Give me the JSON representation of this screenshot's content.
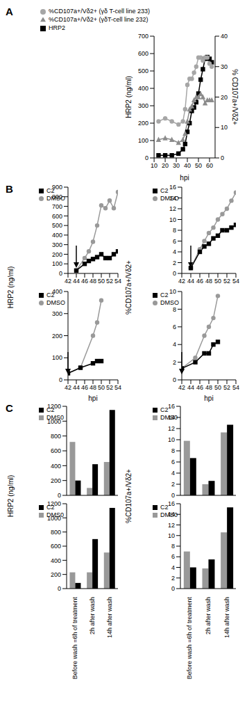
{
  "chart_data": [
    {
      "type": "line",
      "title": "A",
      "xlabel": "hpi",
      "ylabel": "HRP2 (ng/ml)",
      "y2label": "% CD107a+/Vδ2+",
      "x": [
        14,
        20,
        26,
        32,
        36,
        38,
        40,
        42,
        44,
        46,
        48,
        50,
        52,
        54,
        56,
        58,
        60,
        62
      ],
      "xlim": [
        10,
        65
      ],
      "xticks": [
        10,
        20,
        30,
        40,
        50,
        60
      ],
      "ylim": [
        0,
        700
      ],
      "yticks": [
        0,
        100,
        200,
        300,
        400,
        500,
        600,
        700
      ],
      "y2lim": [
        0,
        40
      ],
      "y2ticks": [
        0,
        10,
        20,
        30,
        40
      ],
      "grid": false,
      "legend": "top",
      "series": [
        {
          "name": "HRP2",
          "color": "#000000",
          "marker": "square",
          "line_style": "solid",
          "values": [
            15,
            15,
            15,
            25,
            50,
            80,
            150,
            200,
            270,
            290,
            320,
            370,
            450,
            510,
            570,
            580,
            570,
            550
          ]
        },
        {
          "name": "%CD107a+/Vδ2+ (γδT-cell line 232)",
          "color": "#8c8c8c",
          "marker": "triangle",
          "line_style": "solid",
          "axis": "y2",
          "values": [
            6,
            6.5,
            6,
            5,
            6,
            8,
            12,
            16,
            17,
            19,
            20,
            20,
            21,
            20,
            18,
            19,
            19,
            19
          ]
        },
        {
          "name": "%CD107a+/Vδ2+ (γδ T-cell line 233)",
          "color": "#a6a6a6",
          "marker": "circle",
          "line_style": "solid",
          "axis": "y2",
          "values": [
            12,
            13,
            12,
            11,
            12,
            16,
            24,
            26,
            26,
            28,
            30,
            33,
            33,
            32,
            33,
            33,
            31,
            30
          ]
        }
      ]
    },
    {
      "type": "line",
      "title": "B",
      "ylabel": "HRP2 (ng/ml)",
      "arrow_x": 44,
      "x": [
        44,
        46,
        47,
        48,
        49,
        50,
        51,
        52,
        53,
        54
      ],
      "xlim": [
        42,
        54
      ],
      "xticks": [
        42,
        44,
        46,
        48,
        50,
        52,
        54
      ],
      "ylim": [
        0,
        900
      ],
      "yticks": [
        0,
        100,
        200,
        300,
        400,
        500,
        600,
        700,
        800,
        900
      ],
      "grid": false,
      "legend": "upper left",
      "series": [
        {
          "name": "DMSO",
          "color": "#999999",
          "marker": "circle",
          "line_style": "solid",
          "values": [
            30,
            160,
            230,
            330,
            500,
            710,
            680,
            760,
            680,
            850
          ]
        },
        {
          "name": "C2",
          "color": "#000000",
          "marker": "square",
          "line_style": "solid",
          "values": [
            30,
            100,
            130,
            150,
            170,
            200,
            160,
            160,
            200,
            230
          ]
        }
      ]
    },
    {
      "type": "line",
      "ylabel": "%CD107a+/Vδ2+",
      "arrow_x": 44,
      "x": [
        44,
        46,
        47,
        48,
        49,
        50,
        51,
        52,
        53,
        54
      ],
      "xlim": [
        42,
        54
      ],
      "xticks": [
        42,
        44,
        46,
        48,
        50,
        52,
        54
      ],
      "ylim": [
        0,
        16
      ],
      "yticks": [
        0,
        2,
        4,
        6,
        8,
        10,
        12,
        14,
        16
      ],
      "grid": false,
      "legend": "upper left",
      "series": [
        {
          "name": "DMSO",
          "color": "#999999",
          "marker": "circle",
          "line_style": "solid",
          "values": [
            1,
            4.5,
            6,
            7.5,
            8.5,
            10,
            11,
            12,
            13.5,
            15
          ]
        },
        {
          "name": "C2",
          "color": "#000000",
          "marker": "square",
          "line_style": "solid",
          "values": [
            1,
            4,
            5,
            5.5,
            6.5,
            7,
            8,
            8,
            8.5,
            9
          ]
        }
      ]
    },
    {
      "type": "line",
      "xlabel": "hpi",
      "arrow_x": 42,
      "x": [
        42,
        45,
        48,
        49,
        50
      ],
      "xlim": [
        42,
        54
      ],
      "xticks": [
        42,
        44,
        46,
        48,
        50,
        52,
        54
      ],
      "ylim": [
        0,
        400
      ],
      "yticks": [
        0,
        100,
        200,
        300,
        400
      ],
      "grid": false,
      "legend": "upper left",
      "series": [
        {
          "name": "DMSO",
          "color": "#999999",
          "marker": "circle",
          "line_style": "solid",
          "values": [
            30,
            55,
            200,
            260,
            360
          ]
        },
        {
          "name": "C2",
          "color": "#000000",
          "marker": "square",
          "line_style": "solid",
          "values": [
            30,
            55,
            75,
            85,
            85
          ]
        }
      ]
    },
    {
      "type": "line",
      "xlabel": "hpi",
      "arrow_x": 42,
      "x": [
        42,
        45,
        47,
        48,
        49,
        50
      ],
      "xlim": [
        42,
        54
      ],
      "xticks": [
        42,
        44,
        46,
        48,
        50,
        52,
        54
      ],
      "ylim": [
        0,
        10
      ],
      "yticks": [
        0,
        2,
        4,
        6,
        8,
        10
      ],
      "grid": false,
      "legend": "upper left",
      "series": [
        {
          "name": "DMSO",
          "color": "#999999",
          "marker": "circle",
          "line_style": "solid",
          "values": [
            1.3,
            2.5,
            5,
            6,
            7,
            9.5
          ]
        },
        {
          "name": "C2",
          "color": "#000000",
          "marker": "square",
          "line_style": "solid",
          "values": [
            1.3,
            2,
            3,
            3,
            4,
            4.3
          ]
        }
      ]
    },
    {
      "type": "bar",
      "title": "C",
      "ylabel": "HRP2 (ng/ml)",
      "tick_labels": "y",
      "categories": [
        null,
        null,
        null
      ],
      "ylim": [
        0,
        1200
      ],
      "yticks": [
        0,
        200,
        400,
        600,
        800,
        1000,
        1200
      ],
      "grid": false,
      "legend": "upper left",
      "series": [
        {
          "name": "DMS0",
          "color": "#999999",
          "values": [
            720,
            100,
            450
          ]
        },
        {
          "name": "C2",
          "color": "#000000",
          "values": [
            200,
            420,
            1150
          ]
        }
      ]
    },
    {
      "type": "bar",
      "ylabel": "%CD107a+/Vδ2+",
      "tick_labels": "y",
      "categories": [
        null,
        null,
        null
      ],
      "ylim": [
        0,
        16
      ],
      "yticks": [
        0,
        2,
        4,
        6,
        8,
        10,
        12,
        14,
        16
      ],
      "grid": false,
      "legend": "upper left",
      "series": [
        {
          "name": "DMS0",
          "color": "#999999",
          "values": [
            9.8,
            2,
            11.3
          ]
        },
        {
          "name": "C2",
          "color": "#000000",
          "values": [
            6.7,
            2.6,
            12.7
          ]
        }
      ]
    },
    {
      "type": "bar",
      "categories": [
        "Before wash =6h of treatment",
        "2h after wash",
        "14h after wash"
      ],
      "ylim": [
        0,
        1200
      ],
      "yticks": [
        0,
        200,
        400,
        600,
        800,
        1000,
        1200
      ],
      "grid": false,
      "legend": "upper left",
      "series": [
        {
          "name": "DMS0",
          "color": "#999999",
          "values": [
            230,
            230,
            510
          ]
        },
        {
          "name": "C2",
          "color": "#000000",
          "values": [
            80,
            700,
            1140
          ]
        }
      ]
    },
    {
      "type": "bar",
      "categories": [
        "Before wash =6h of treatment",
        "2h after wash",
        "14h after wash"
      ],
      "ylim": [
        0,
        16
      ],
      "yticks": [
        0,
        2,
        4,
        6,
        8,
        10,
        12,
        14,
        16
      ],
      "grid": false,
      "legend": "upper left",
      "series": [
        {
          "name": "DMS0",
          "color": "#999999",
          "values": [
            7,
            3.8,
            10.6
          ]
        },
        {
          "name": "C2",
          "color": "#000000",
          "values": [
            4,
            5.5,
            15.3
          ]
        }
      ]
    }
  ]
}
